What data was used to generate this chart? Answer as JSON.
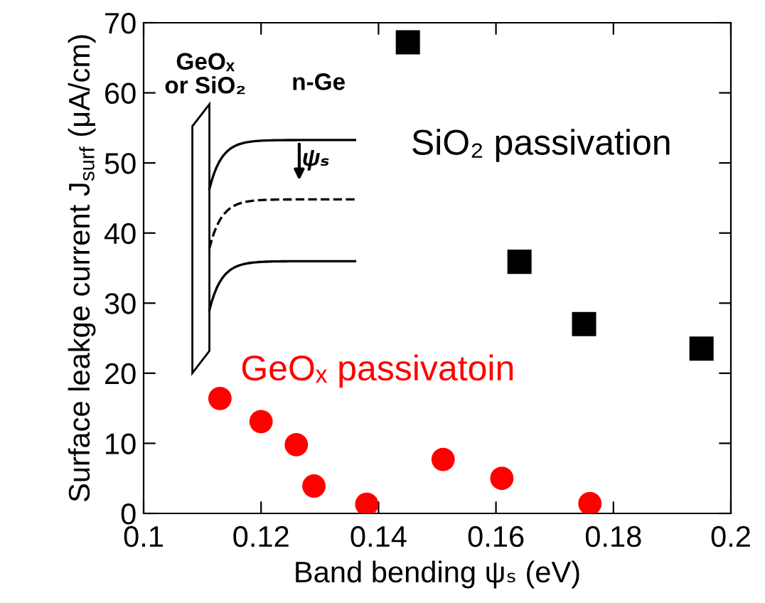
{
  "chart_data": {
    "type": "scatter",
    "xlabel": "Band bending ψₛ (eV)",
    "ylabel": "Surface leakge current J$_{surf}$ (μA/cm)",
    "series": [
      {
        "name": "SiO₂ passivation",
        "color": "#000000",
        "marker": "square",
        "x": [
          0.145,
          0.164,
          0.175,
          0.195
        ],
        "values": [
          67.2,
          35.9,
          27.0,
          23.5
        ]
      },
      {
        "name": "GeOₓ passivatoin",
        "color": "#ff0000",
        "marker": "circle",
        "x": [
          0.113,
          0.12,
          0.126,
          0.129,
          0.138,
          0.151,
          0.161,
          0.176
        ],
        "values": [
          16.4,
          13.1,
          9.8,
          3.9,
          1.3,
          7.7,
          5.0,
          1.4
        ]
      }
    ],
    "annotations": [
      "GeOₓ\nor SiO₂",
      "n-Ge",
      "ψₛ"
    ],
    "xlim": [
      0.1,
      0.2
    ],
    "xticks": [
      0.1,
      0.12,
      0.14,
      0.16,
      0.18,
      0.2
    ],
    "ylim": [
      0,
      70
    ],
    "yticks": [
      0,
      10,
      20,
      30,
      40,
      50,
      60,
      70
    ],
    "grid": false
  }
}
